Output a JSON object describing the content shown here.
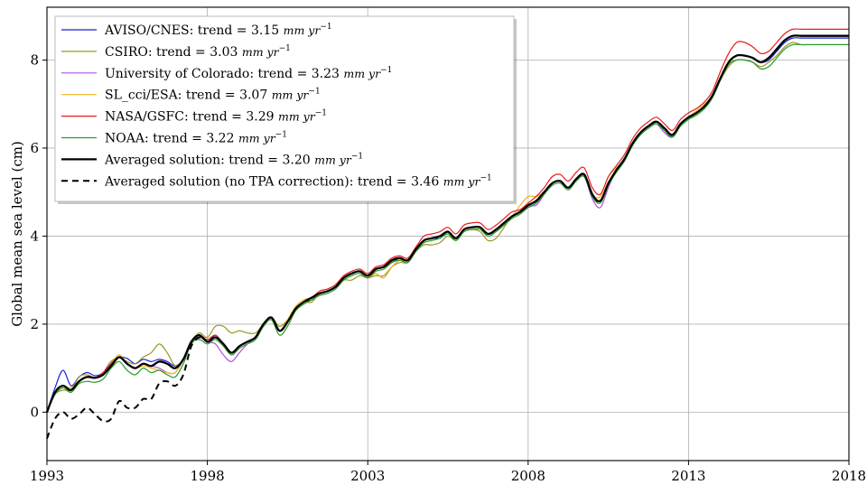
{
  "chart_data": {
    "type": "line",
    "title": "",
    "xlabel": "",
    "ylabel": "Global mean sea level (cm)",
    "xlim": [
      1993,
      2018
    ],
    "ylim": [
      -1.1,
      9.2
    ],
    "xticks": [
      1993,
      1998,
      2003,
      2008,
      2013,
      2018
    ],
    "yticks": [
      0,
      2,
      4,
      6,
      8
    ],
    "grid": true,
    "legend_position": "top-left",
    "trend_unit": "mm yr",
    "trend_unit_exp": "−1",
    "anchors_x": [
      1993.0,
      1993.25,
      1993.5,
      1993.75,
      1994.0,
      1994.25,
      1994.5,
      1994.75,
      1995.0,
      1995.25,
      1995.5,
      1995.75,
      1996.0,
      1996.25,
      1996.5,
      1996.75,
      1997.0,
      1997.25,
      1997.5,
      1997.75,
      1998.0,
      1998.25,
      1998.5,
      1998.75,
      1999.0,
      1999.25,
      1999.5,
      1999.75,
      2000.0,
      2000.25,
      2000.5,
      2000.75,
      2001.0,
      2001.25,
      2001.5,
      2001.75,
      2002.0,
      2002.25,
      2002.5,
      2002.75,
      2003.0,
      2003.25,
      2003.5,
      2003.75,
      2004.0,
      2004.25,
      2004.5,
      2004.75,
      2005.0,
      2005.25,
      2005.5,
      2005.75,
      2006.0,
      2006.25,
      2006.5,
      2006.75,
      2007.0,
      2007.25,
      2007.5,
      2007.75,
      2008.0,
      2008.25,
      2008.5,
      2008.75,
      2009.0,
      2009.25,
      2009.5,
      2009.75,
      2010.0,
      2010.25,
      2010.5,
      2010.75,
      2011.0,
      2011.25,
      2011.5,
      2011.75,
      2012.0,
      2012.25,
      2012.5,
      2012.75,
      2013.0,
      2013.25,
      2013.5,
      2013.75,
      2014.0,
      2014.25,
      2014.5,
      2014.75,
      2015.0,
      2015.25,
      2015.5,
      2015.75,
      2016.0,
      2016.25,
      2016.5,
      2016.75,
      2017.0,
      2017.25,
      2017.5,
      2017.75,
      2018.0
    ],
    "base_y": [
      0.0,
      0.45,
      0.6,
      0.5,
      0.7,
      0.8,
      0.78,
      0.85,
      1.05,
      1.25,
      1.1,
      1.0,
      1.1,
      1.05,
      1.15,
      1.1,
      1.0,
      1.2,
      1.6,
      1.75,
      1.6,
      1.7,
      1.55,
      1.35,
      1.5,
      1.6,
      1.7,
      2.0,
      2.15,
      1.85,
      2.05,
      2.35,
      2.5,
      2.6,
      2.7,
      2.75,
      2.85,
      3.05,
      3.15,
      3.2,
      3.1,
      3.25,
      3.3,
      3.45,
      3.5,
      3.45,
      3.7,
      3.9,
      3.95,
      4.0,
      4.1,
      3.95,
      4.15,
      4.2,
      4.2,
      4.05,
      4.15,
      4.3,
      4.45,
      4.55,
      4.7,
      4.8,
      5.0,
      5.2,
      5.25,
      5.1,
      5.3,
      5.4,
      4.95,
      4.8,
      5.2,
      5.5,
      5.75,
      6.1,
      6.35,
      6.5,
      6.6,
      6.45,
      6.3,
      6.55,
      6.7,
      6.8,
      6.95,
      7.2,
      7.6,
      7.95,
      8.1,
      8.1,
      8.05,
      7.95,
      8.05,
      8.25,
      8.45,
      8.55,
      8.55,
      8.55,
      8.55,
      8.55,
      8.55,
      8.55,
      8.55
    ],
    "series": [
      {
        "label": "AVISO/CNES: trend = 3.15",
        "color": "#1f1fd6",
        "width": 1.2,
        "dash": "",
        "offsets": [
          0.0,
          0.1,
          0.35,
          0.1,
          0.1,
          0.1,
          0.05,
          0.05,
          0.1,
          0.0,
          0.12,
          0.1,
          0.1,
          0.1,
          0.05,
          0.05,
          0.05,
          0.0,
          0.0,
          0.0,
          0.0,
          0.05,
          0.0,
          0.0,
          0.0,
          0.0,
          0.0,
          0.0,
          0.0,
          0.0,
          0.0,
          0.0,
          0.0,
          -0.05,
          0.0,
          0.0,
          0.0,
          0.0,
          0.0,
          0.0,
          0.0,
          0.0,
          0.0,
          -0.05,
          0.0,
          0.0,
          0.0,
          0.0,
          0.0,
          -0.05,
          0.0,
          0.0,
          0.0,
          0.0,
          0.0,
          0.0,
          0.0,
          0.0,
          0.0,
          0.0,
          -0.05,
          -0.05,
          0.0,
          0.0,
          0.0,
          0.0,
          0.0,
          0.0,
          0.0,
          0.0,
          0.0,
          0.0,
          0.0,
          0.0,
          0.0,
          0.0,
          0.0,
          0.0,
          -0.05,
          0.0,
          0.0,
          0.0,
          0.0,
          0.0,
          0.0,
          0.0,
          0.0,
          0.0,
          0.0,
          0.0,
          -0.05,
          -0.05,
          -0.05,
          -0.05,
          -0.05,
          -0.05,
          -0.05,
          -0.05,
          -0.05,
          -0.05,
          -0.05
        ]
      },
      {
        "label": "CSIRO: trend = 3.03",
        "color": "#9a9a25",
        "width": 1.2,
        "dash": "",
        "offsets": [
          0.0,
          -0.05,
          -0.1,
          0.0,
          0.1,
          0.05,
          0.0,
          0.0,
          0.1,
          0.0,
          0.05,
          0.1,
          0.15,
          0.3,
          0.4,
          0.25,
          0.05,
          0.0,
          0.0,
          0.05,
          0.1,
          0.25,
          0.4,
          0.45,
          0.35,
          0.2,
          0.1,
          0.0,
          0.0,
          0.1,
          0.05,
          0.0,
          0.0,
          -0.1,
          0.0,
          0.0,
          0.0,
          -0.05,
          -0.15,
          -0.1,
          -0.05,
          -0.15,
          -0.2,
          -0.15,
          -0.1,
          -0.05,
          -0.05,
          -0.1,
          -0.15,
          -0.15,
          -0.1,
          -0.05,
          -0.05,
          -0.05,
          -0.1,
          -0.15,
          -0.2,
          -0.1,
          0.0,
          0.0,
          0.0,
          0.0,
          0.0,
          0.0,
          0.0,
          0.0,
          0.0,
          0.0,
          0.0,
          0.0,
          0.0,
          0.0,
          0.0,
          0.0,
          -0.05,
          0.0,
          0.0,
          -0.05,
          -0.05,
          -0.05,
          -0.05,
          0.0,
          0.0,
          0.0,
          -0.05,
          -0.1,
          -0.1,
          -0.1,
          -0.1,
          -0.1,
          -0.1,
          -0.15,
          -0.15,
          -0.15,
          -0.2,
          -0.2,
          -0.2,
          -0.2,
          -0.2,
          -0.2,
          -0.2
        ]
      },
      {
        "label": "University of Colorado: trend = 3.23",
        "color": "#b44fe0",
        "width": 1.2,
        "dash": "",
        "offsets": [
          0.0,
          0.0,
          0.0,
          0.0,
          0.0,
          0.0,
          0.0,
          0.0,
          0.0,
          0.0,
          0.0,
          0.0,
          0.0,
          0.0,
          -0.15,
          -0.2,
          -0.1,
          0.0,
          0.0,
          -0.05,
          0.0,
          -0.15,
          -0.25,
          -0.2,
          -0.15,
          -0.05,
          0.0,
          0.0,
          0.0,
          0.0,
          0.0,
          0.0,
          0.0,
          0.0,
          0.0,
          0.0,
          0.0,
          0.0,
          0.0,
          0.0,
          0.0,
          0.0,
          0.0,
          0.0,
          0.0,
          0.0,
          0.0,
          0.0,
          0.0,
          0.0,
          0.0,
          0.0,
          0.0,
          0.0,
          0.0,
          0.0,
          0.0,
          0.0,
          0.0,
          0.0,
          0.0,
          -0.1,
          -0.05,
          0.0,
          0.0,
          0.0,
          0.0,
          -0.05,
          -0.1,
          -0.15,
          -0.1,
          0.0,
          0.0,
          0.0,
          0.0,
          0.0,
          -0.05,
          -0.1,
          -0.05,
          0.0,
          0.0,
          0.0,
          0.0,
          0.0,
          0.0,
          0.0,
          0.0,
          0.0,
          0.0,
          0.0,
          0.0,
          0.0,
          0.0,
          0.0,
          0.0,
          0.0,
          0.0,
          0.0,
          0.0,
          0.0,
          0.0
        ]
      },
      {
        "label": "SL_cci/ESA: trend = 3.07",
        "color": "#f2b21c",
        "width": 1.2,
        "dash": "",
        "offsets": [
          0.0,
          0.0,
          0.0,
          0.05,
          0.0,
          0.0,
          0.0,
          0.0,
          0.05,
          0.05,
          0.0,
          0.0,
          -0.05,
          -0.05,
          -0.2,
          -0.2,
          -0.1,
          0.0,
          -0.05,
          0.0,
          0.0,
          0.0,
          0.0,
          0.0,
          0.0,
          0.0,
          0.0,
          0.0,
          0.0,
          0.0,
          0.05,
          0.05,
          0.05,
          0.0,
          0.0,
          0.0,
          0.0,
          0.0,
          0.0,
          0.0,
          -0.05,
          -0.1,
          -0.25,
          -0.15,
          -0.05,
          0.0,
          0.0,
          0.0,
          0.0,
          0.0,
          0.0,
          0.0,
          0.0,
          0.0,
          0.0,
          0.0,
          0.0,
          0.0,
          0.0,
          0.15,
          0.2,
          0.1,
          0.0,
          0.0,
          0.0,
          0.0,
          0.0,
          0.0,
          0.0,
          0.1,
          0.15,
          0.05,
          0.0,
          0.0,
          0.0,
          0.0,
          0.0,
          0.0,
          0.0,
          0.0,
          0.0,
          0.05,
          0.05,
          0.0,
          0.0,
          0.0,
          0.0,
          0.0,
          0.0,
          0.0,
          0.0,
          0.0,
          0.0,
          0.0,
          0.0,
          0.0,
          0.0,
          0.0,
          0.0,
          0.0,
          0.0
        ]
      },
      {
        "label": "NASA/GSFC: trend = 3.29",
        "color": "#e81c1c",
        "width": 1.2,
        "dash": "",
        "offsets": [
          0.0,
          0.0,
          0.0,
          0.0,
          0.0,
          0.0,
          0.0,
          0.05,
          0.05,
          0.0,
          0.0,
          0.0,
          0.0,
          0.0,
          0.0,
          0.0,
          0.0,
          0.0,
          0.0,
          0.0,
          0.05,
          0.05,
          0.0,
          0.0,
          0.0,
          0.0,
          0.0,
          0.0,
          0.0,
          0.0,
          0.0,
          0.0,
          0.0,
          0.0,
          0.05,
          0.05,
          0.05,
          0.05,
          0.05,
          0.05,
          0.05,
          0.05,
          0.05,
          0.05,
          0.05,
          0.05,
          0.05,
          0.1,
          0.1,
          0.1,
          0.1,
          0.1,
          0.1,
          0.1,
          0.1,
          0.1,
          0.1,
          0.1,
          0.1,
          0.05,
          0.05,
          0.1,
          0.1,
          0.15,
          0.15,
          0.15,
          0.15,
          0.15,
          0.15,
          0.15,
          0.15,
          0.1,
          0.1,
          0.1,
          0.1,
          0.1,
          0.1,
          0.1,
          0.1,
          0.1,
          0.1,
          0.1,
          0.1,
          0.1,
          0.15,
          0.2,
          0.3,
          0.3,
          0.25,
          0.2,
          0.15,
          0.15,
          0.15,
          0.15,
          0.15,
          0.15,
          0.15,
          0.15,
          0.15,
          0.15,
          0.15
        ]
      },
      {
        "label": "NOAA: trend = 3.22",
        "color": "#2a9a2a",
        "width": 1.2,
        "dash": "",
        "offsets": [
          0.0,
          -0.05,
          -0.05,
          -0.05,
          -0.05,
          -0.1,
          -0.1,
          -0.1,
          -0.05,
          -0.1,
          -0.15,
          -0.15,
          -0.1,
          -0.15,
          -0.2,
          -0.25,
          -0.2,
          -0.1,
          -0.05,
          -0.1,
          -0.05,
          -0.05,
          -0.05,
          -0.05,
          -0.05,
          -0.05,
          -0.05,
          -0.05,
          -0.05,
          -0.1,
          -0.1,
          -0.05,
          -0.05,
          -0.05,
          -0.05,
          -0.05,
          -0.05,
          -0.05,
          -0.05,
          -0.05,
          -0.05,
          -0.05,
          -0.05,
          -0.05,
          -0.05,
          -0.05,
          -0.05,
          -0.05,
          -0.05,
          -0.05,
          -0.05,
          -0.05,
          -0.05,
          -0.05,
          -0.05,
          -0.05,
          -0.05,
          -0.05,
          -0.05,
          -0.05,
          -0.05,
          -0.05,
          -0.05,
          -0.05,
          -0.05,
          -0.05,
          -0.05,
          -0.05,
          -0.05,
          -0.05,
          -0.05,
          -0.05,
          -0.05,
          -0.05,
          -0.05,
          -0.05,
          -0.05,
          -0.05,
          -0.05,
          -0.05,
          -0.05,
          -0.05,
          -0.05,
          -0.05,
          -0.05,
          -0.05,
          -0.1,
          -0.1,
          -0.1,
          -0.15,
          -0.2,
          -0.2,
          -0.2,
          -0.2,
          -0.2,
          -0.2,
          -0.2,
          -0.2,
          -0.2,
          -0.2,
          -0.2
        ]
      },
      {
        "label": "Averaged solution: trend = 3.20",
        "color": "#000000",
        "width": 2.3,
        "dash": "",
        "offsets": [
          0.0,
          0.0,
          0.0,
          0.0,
          0.0,
          0.0,
          0.0,
          0.0,
          0.0,
          0.0,
          0.0,
          0.0,
          0.0,
          0.0,
          0.0,
          0.0,
          0.0,
          0.0,
          0.0,
          0.0,
          0.0,
          0.0,
          0.0,
          0.0,
          0.0,
          0.0,
          0.0,
          0.0,
          0.0,
          0.0,
          0.0,
          0.0,
          0.0,
          0.0,
          0.0,
          0.0,
          0.0,
          0.0,
          0.0,
          0.0,
          0.0,
          0.0,
          0.0,
          0.0,
          0.0,
          0.0,
          0.0,
          0.0,
          0.0,
          0.0,
          0.0,
          0.0,
          0.0,
          0.0,
          0.0,
          0.0,
          0.0,
          0.0,
          0.0,
          0.0,
          0.0,
          0.0,
          0.0,
          0.0,
          0.0,
          0.0,
          0.0,
          0.0,
          0.0,
          0.0,
          0.0,
          0.0,
          0.0,
          0.0,
          0.0,
          0.0,
          0.0,
          0.0,
          0.0,
          0.0,
          0.0,
          0.0,
          0.0,
          0.0,
          0.0,
          0.0,
          0.0,
          0.0,
          0.0,
          0.0,
          0.0,
          0.0,
          0.0,
          0.0,
          0.0,
          0.0,
          0.0,
          0.0,
          0.0,
          0.0,
          0.0
        ]
      }
    ],
    "dashed_series": {
      "label": "Averaged solution (no TPA correction): trend = 3.46",
      "color": "#000000",
      "width": 2.0,
      "dash": "7,5",
      "x": [
        1993.0,
        1993.25,
        1993.5,
        1993.75,
        1994.0,
        1994.25,
        1994.5,
        1994.75,
        1995.0,
        1995.25,
        1995.5,
        1995.75,
        1996.0,
        1996.25,
        1996.5,
        1996.75,
        1997.0,
        1997.25,
        1997.5,
        1997.75,
        1998.0
      ],
      "y": [
        -0.6,
        -0.15,
        0.0,
        -0.15,
        -0.05,
        0.1,
        -0.05,
        -0.2,
        -0.15,
        0.25,
        0.1,
        0.1,
        0.3,
        0.3,
        0.65,
        0.7,
        0.6,
        0.85,
        1.5,
        1.7,
        1.6
      ]
    }
  }
}
